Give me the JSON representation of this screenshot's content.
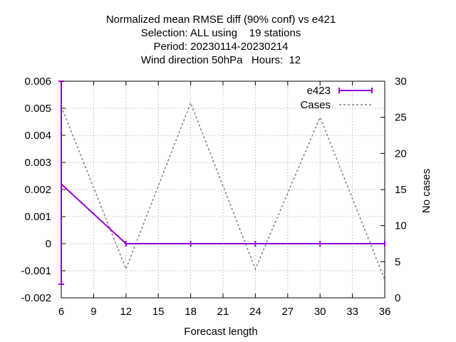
{
  "chart_data": {
    "type": "line",
    "title_lines": [
      "Normalized mean RMSE diff (90% conf) vs e421",
      "Selection: ALL using    19 stations",
      "Period: 20230114-20230214",
      "Wind direction 50hPa   Hours:  12"
    ],
    "xlabel": "Forecast length",
    "ylabel": "",
    "y2label": "No cases",
    "xlim": [
      6,
      36
    ],
    "ylim": [
      -0.002,
      0.006
    ],
    "y2lim": [
      0,
      30
    ],
    "x_ticks": [
      "6",
      "9",
      "12",
      "15",
      "18",
      "21",
      "24",
      "27",
      "30",
      "33",
      "36"
    ],
    "y_ticks": [
      "0.006",
      "0.005",
      "0.004",
      "0.003",
      "0.002",
      "0.001",
      "0",
      "-0.001",
      "-0.002"
    ],
    "y2_ticks": [
      "30",
      "25",
      "20",
      "15",
      "10",
      "5",
      "0"
    ],
    "grid": true,
    "legend_position": "top-right",
    "series": [
      {
        "name": "e423",
        "axis": "y1",
        "color": "#9400d3",
        "style": "solid-with-errorbars",
        "x": [
          6,
          12,
          18,
          24,
          30,
          36
        ],
        "y": [
          0.0022,
          0.0,
          0.0,
          0.0,
          0.0,
          0.0
        ],
        "err_low": [
          -0.0015,
          0.0,
          0.0,
          0.0,
          0.0,
          0.0
        ],
        "err_high": [
          0.006,
          0.0,
          0.0,
          0.0,
          0.0,
          0.0
        ]
      },
      {
        "name": "Cases",
        "axis": "y2",
        "color": "#808080",
        "style": "dashed",
        "x": [
          6,
          12,
          18,
          24,
          30,
          36
        ],
        "y": [
          26.5,
          4,
          27,
          4,
          25,
          2.5
        ]
      }
    ]
  }
}
